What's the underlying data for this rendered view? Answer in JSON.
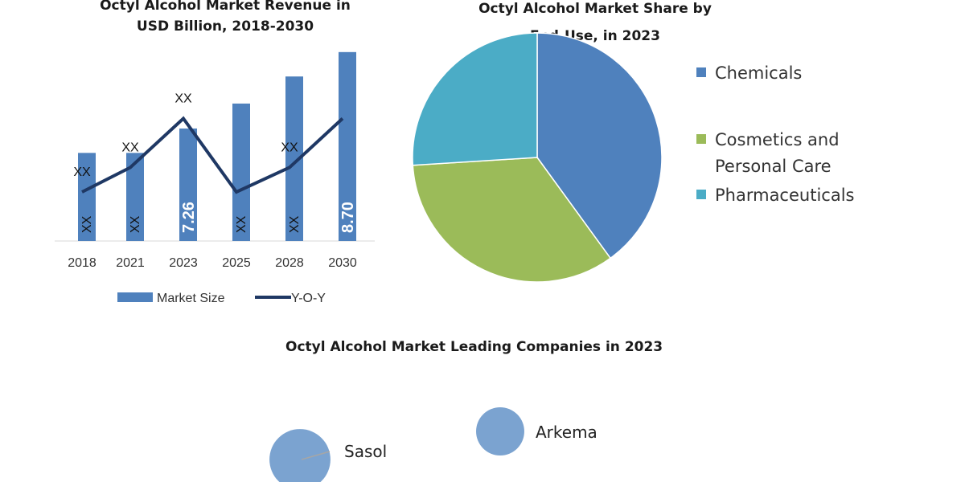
{
  "bar_title": "Octyl Alcohol Market Revenue in USD Billion, 2018-2030",
  "pie_title": "Octyl Alcohol Market Share by End-Use, in 2023",
  "bubble_title": "Octyl Alcohol Market Leading Companies in 2023",
  "chart_data": [
    {
      "type": "bar",
      "title": "Octyl Alcohol Market Revenue in USD Billion, 2018-2030",
      "categories": [
        "2018",
        "2021",
        "2023",
        "2025",
        "2028",
        "2030"
      ],
      "series": [
        {
          "name": "Market Size",
          "type": "bar",
          "values": [
            6.8,
            6.8,
            7.26,
            7.73,
            8.24,
            8.7
          ],
          "labels": [
            "XX",
            "XX",
            "7.26",
            "XX",
            "XX",
            "8.70"
          ],
          "color": "#4f81bd"
        },
        {
          "name": "Y-O-Y",
          "type": "line",
          "values": [
            2,
            3,
            5,
            2,
            3,
            5
          ],
          "labels": [
            "XX",
            "XX",
            "XX",
            "",
            "XX",
            ""
          ],
          "color": "#1f3864"
        }
      ],
      "ylim": [
        5.14,
        9.0
      ],
      "legend": "bottom"
    },
    {
      "type": "pie",
      "title": "Octyl Alcohol Market Share by End-Use, in 2023",
      "slices": [
        {
          "label": "Chemicals",
          "value": 40,
          "color": "#4f81bd"
        },
        {
          "label": "Cosmetics and Personal Care",
          "value": 34,
          "color": "#9bbb59"
        },
        {
          "label": "Pharmaceuticals",
          "value": 26,
          "color": "#4bacc6"
        }
      ],
      "legend": "right"
    },
    {
      "type": "scatter",
      "title": "Octyl Alcohol Market Leading Companies in 2023",
      "points": [
        {
          "label": "Sasol",
          "size": 1.6
        },
        {
          "label": "Arkema",
          "size": 1.0
        }
      ],
      "color": "#7ba3d0"
    }
  ]
}
